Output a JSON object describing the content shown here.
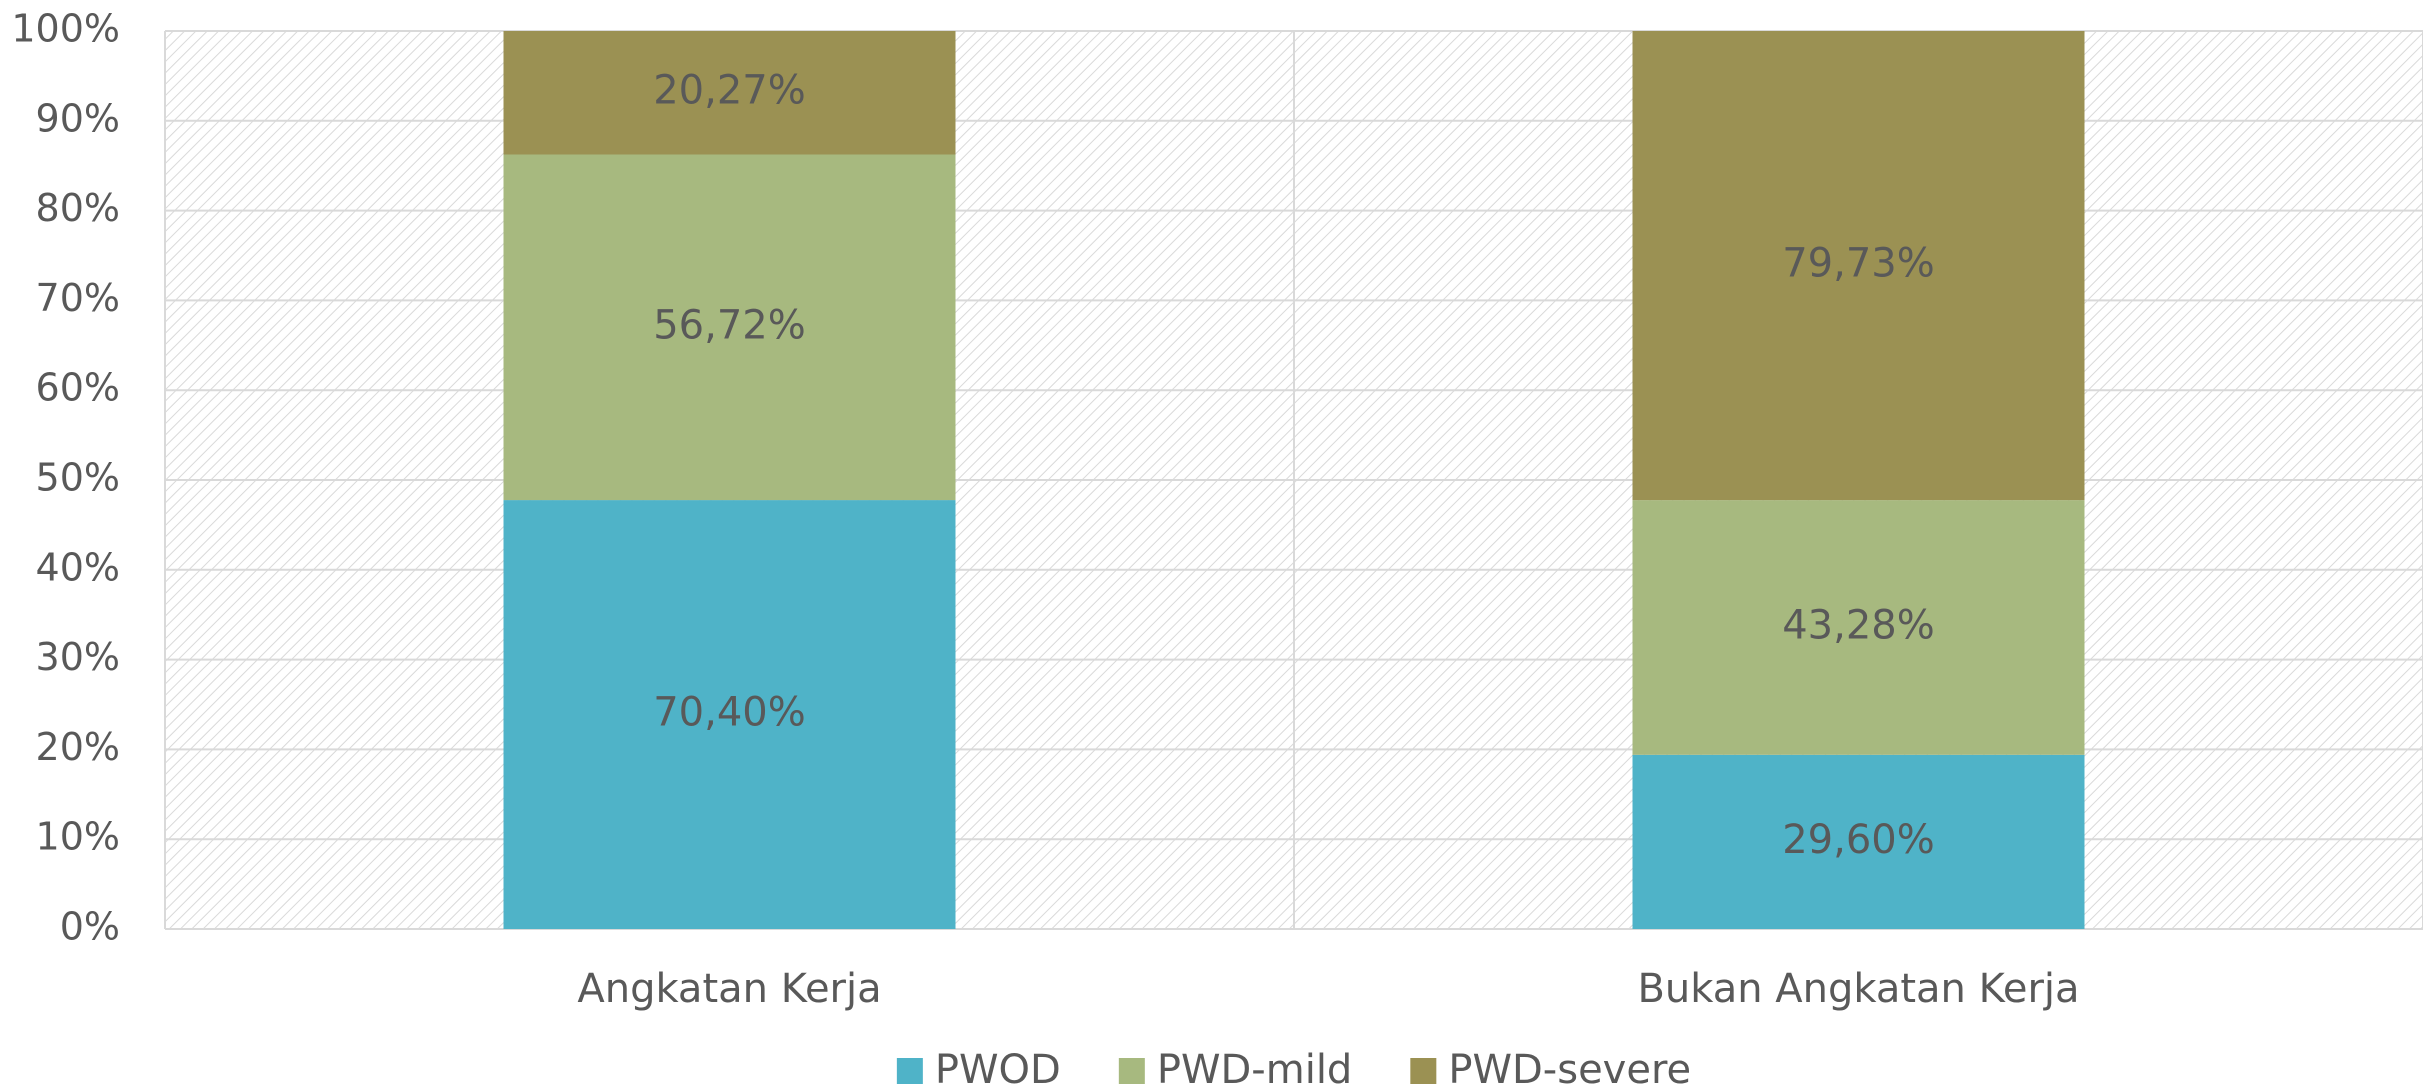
{
  "chart_data": {
    "type": "bar",
    "stacking": "percent",
    "categories": [
      "Angkatan Kerja",
      "Bukan Angkatan Kerja"
    ],
    "series": [
      {
        "name": "PWOD",
        "color": "#4fb3c8",
        "values": [
          70.4,
          29.6
        ],
        "value_labels": [
          "70,40%",
          "29,60%"
        ]
      },
      {
        "name": "PWD-mild",
        "color": "#a7b97f",
        "values": [
          56.72,
          43.28
        ],
        "value_labels": [
          "56,72%",
          "43,28%"
        ]
      },
      {
        "name": "PWD-severe",
        "color": "#9b9153",
        "values": [
          20.27,
          79.73
        ],
        "value_labels": [
          "20,27%",
          "79,73%"
        ]
      }
    ],
    "ylim": [
      0,
      100
    ],
    "yticks": [
      {
        "value": 0,
        "label": "0%"
      },
      {
        "value": 10,
        "label": "10%"
      },
      {
        "value": 20,
        "label": "20%"
      },
      {
        "value": 30,
        "label": "30%"
      },
      {
        "value": 40,
        "label": "40%"
      },
      {
        "value": 50,
        "label": "50%"
      },
      {
        "value": 60,
        "label": "60%"
      },
      {
        "value": 70,
        "label": "70%"
      },
      {
        "value": 80,
        "label": "80%"
      },
      {
        "value": 90,
        "label": "90%"
      },
      {
        "value": 100,
        "label": "100%"
      }
    ],
    "grid": true,
    "legend": "bottom"
  }
}
